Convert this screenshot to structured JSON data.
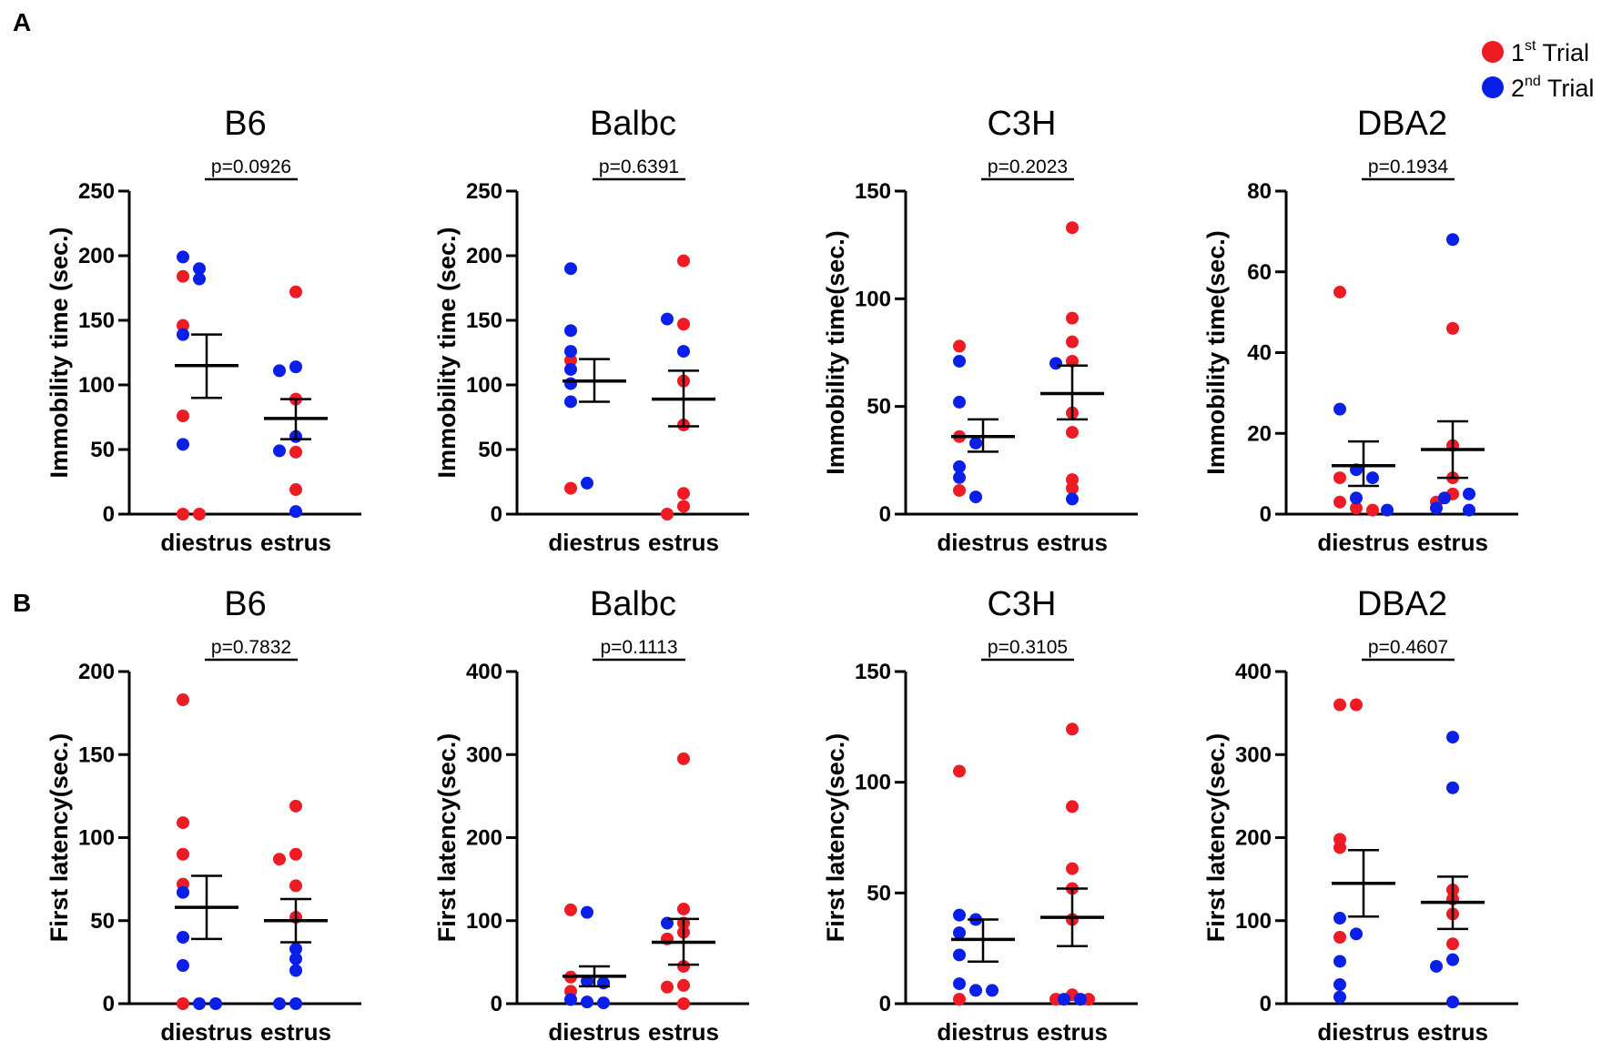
{
  "figure": {
    "panel_labels": [
      "A",
      "B"
    ],
    "legend": [
      {
        "name": "trial1",
        "base": "1",
        "sup": "st",
        "rest": " Trial",
        "color": "#ed1c24"
      },
      {
        "name": "trial2",
        "base": "2",
        "sup": "nd",
        "rest": " Trial",
        "color": "#0a1fe8"
      }
    ],
    "colors": {
      "red": "#ed1c24",
      "blue": "#0a1fe8",
      "axis": "#000000"
    }
  },
  "chart_data": [
    {
      "type": "scatter",
      "row": "A",
      "title": "B6",
      "ylabel": "Immobility time (sec.)",
      "ylim": [
        0,
        250
      ],
      "yticks": [
        0,
        50,
        100,
        150,
        200,
        250
      ],
      "categories": [
        "diestrus",
        "estrus"
      ],
      "p_value": "p=0.0926",
      "groups": [
        {
          "category": "diestrus",
          "mean": 115,
          "sem_upper": 139,
          "sem_lower": 90,
          "red": [
            184,
            146,
            76,
            0,
            0
          ],
          "blue": [
            199,
            190,
            182,
            139,
            54
          ]
        },
        {
          "category": "estrus",
          "mean": 74,
          "sem_upper": 89,
          "sem_lower": 58,
          "red": [
            172,
            89,
            48,
            19
          ],
          "blue": [
            114,
            111,
            60,
            49,
            2
          ]
        }
      ]
    },
    {
      "type": "scatter",
      "row": "A",
      "title": "Balbc",
      "ylabel": "Immobility time (sec.)",
      "ylim": [
        0,
        250
      ],
      "yticks": [
        0,
        50,
        100,
        150,
        200,
        250
      ],
      "categories": [
        "diestrus",
        "estrus"
      ],
      "p_value": "p=0.6391",
      "groups": [
        {
          "category": "diestrus",
          "mean": 103,
          "sem_upper": 120,
          "sem_lower": 87,
          "red": [
            119,
            20
          ],
          "blue": [
            190,
            142,
            126,
            112,
            101,
            87,
            24
          ]
        },
        {
          "category": "estrus",
          "mean": 89,
          "sem_upper": 111,
          "sem_lower": 68,
          "red": [
            196,
            147,
            103,
            69,
            16,
            6,
            0
          ],
          "blue": [
            151,
            126
          ]
        }
      ]
    },
    {
      "type": "scatter",
      "row": "A",
      "title": "C3H",
      "ylabel": "Immobility time(sec.)",
      "ylim": [
        0,
        150
      ],
      "yticks": [
        0,
        50,
        100,
        150
      ],
      "categories": [
        "diestrus",
        "estrus"
      ],
      "p_value": "p=0.2023",
      "groups": [
        {
          "category": "diestrus",
          "mean": 36,
          "sem_upper": 44,
          "sem_lower": 29,
          "red": [
            78,
            36,
            11
          ],
          "blue": [
            71,
            52,
            33,
            22,
            17,
            8
          ]
        },
        {
          "category": "estrus",
          "mean": 56,
          "sem_upper": 69,
          "sem_lower": 44,
          "red": [
            133,
            91,
            80,
            71,
            47,
            38,
            16,
            12
          ],
          "blue": [
            70,
            7
          ]
        }
      ]
    },
    {
      "type": "scatter",
      "row": "A",
      "title": "DBA2",
      "ylabel": "Immobility time(sec.)",
      "ylim": [
        0,
        80
      ],
      "yticks": [
        0,
        20,
        40,
        60,
        80
      ],
      "categories": [
        "diestrus",
        "estrus"
      ],
      "p_value": "p=0.1934",
      "groups": [
        {
          "category": "diestrus",
          "mean": 12,
          "sem_upper": 18,
          "sem_lower": 7,
          "red": [
            55,
            9,
            3,
            1.5,
            1
          ],
          "blue": [
            26,
            11,
            9,
            4,
            1
          ]
        },
        {
          "category": "estrus",
          "mean": 16,
          "sem_upper": 23,
          "sem_lower": 9,
          "red": [
            46,
            17,
            9,
            5,
            3
          ],
          "blue": [
            68,
            5,
            4,
            1.5,
            1
          ]
        }
      ]
    },
    {
      "type": "scatter",
      "row": "B",
      "title": "B6",
      "ylabel": "First latency(sec.)",
      "ylim": [
        0,
        200
      ],
      "yticks": [
        0,
        50,
        100,
        150,
        200
      ],
      "categories": [
        "diestrus",
        "estrus"
      ],
      "p_value": "p=0.7832",
      "groups": [
        {
          "category": "diestrus",
          "mean": 58,
          "sem_upper": 77,
          "sem_lower": 39,
          "red": [
            183,
            109,
            90,
            72,
            0
          ],
          "blue": [
            67,
            40,
            23,
            0,
            0
          ]
        },
        {
          "category": "estrus",
          "mean": 50,
          "sem_upper": 63,
          "sem_lower": 37,
          "red": [
            119,
            90,
            87,
            71,
            52
          ],
          "blue": [
            33,
            27,
            20,
            0,
            0
          ]
        }
      ]
    },
    {
      "type": "scatter",
      "row": "B",
      "title": "Balbc",
      "ylabel": "First latency(sec.)",
      "ylim": [
        0,
        400
      ],
      "yticks": [
        0,
        100,
        200,
        300,
        400
      ],
      "categories": [
        "diestrus",
        "estrus"
      ],
      "p_value": "p=0.1113",
      "groups": [
        {
          "category": "diestrus",
          "mean": 33,
          "sem_upper": 45,
          "sem_lower": 21,
          "red": [
            113,
            32,
            15
          ],
          "blue": [
            110,
            27,
            25,
            5,
            2,
            1
          ]
        },
        {
          "category": "estrus",
          "mean": 74,
          "sem_upper": 102,
          "sem_lower": 47,
          "red": [
            295,
            114,
            97,
            86,
            78,
            45,
            22,
            20,
            0
          ],
          "blue": [
            97
          ]
        }
      ]
    },
    {
      "type": "scatter",
      "row": "B",
      "title": "C3H",
      "ylabel": "First latency(sec.)",
      "ylim": [
        0,
        150
      ],
      "yticks": [
        0,
        50,
        100,
        150
      ],
      "categories": [
        "diestrus",
        "estrus"
      ],
      "p_value": "p=0.3105",
      "groups": [
        {
          "category": "diestrus",
          "mean": 29,
          "sem_upper": 38,
          "sem_lower": 19,
          "red": [
            105,
            2
          ],
          "blue": [
            40,
            38,
            32,
            22,
            9,
            6,
            6
          ]
        },
        {
          "category": "estrus",
          "mean": 39,
          "sem_upper": 52,
          "sem_lower": 26,
          "red": [
            124,
            89,
            61,
            52,
            38,
            4,
            2,
            2
          ],
          "blue": [
            2,
            2
          ]
        }
      ]
    },
    {
      "type": "scatter",
      "row": "B",
      "title": "DBA2",
      "ylabel": "First latency(sec.)",
      "ylim": [
        0,
        400
      ],
      "yticks": [
        0,
        100,
        200,
        300,
        400
      ],
      "categories": [
        "diestrus",
        "estrus"
      ],
      "p_value": "p=0.4607",
      "groups": [
        {
          "category": "diestrus",
          "mean": 145,
          "sem_upper": 185,
          "sem_lower": 105,
          "red": [
            360,
            360,
            198,
            188,
            80
          ],
          "blue": [
            103,
            84,
            51,
            23,
            8
          ]
        },
        {
          "category": "estrus",
          "mean": 122,
          "sem_upper": 153,
          "sem_lower": 90,
          "red": [
            137,
            126,
            108,
            72
          ],
          "blue": [
            321,
            260,
            53,
            45,
            2
          ]
        }
      ]
    }
  ]
}
